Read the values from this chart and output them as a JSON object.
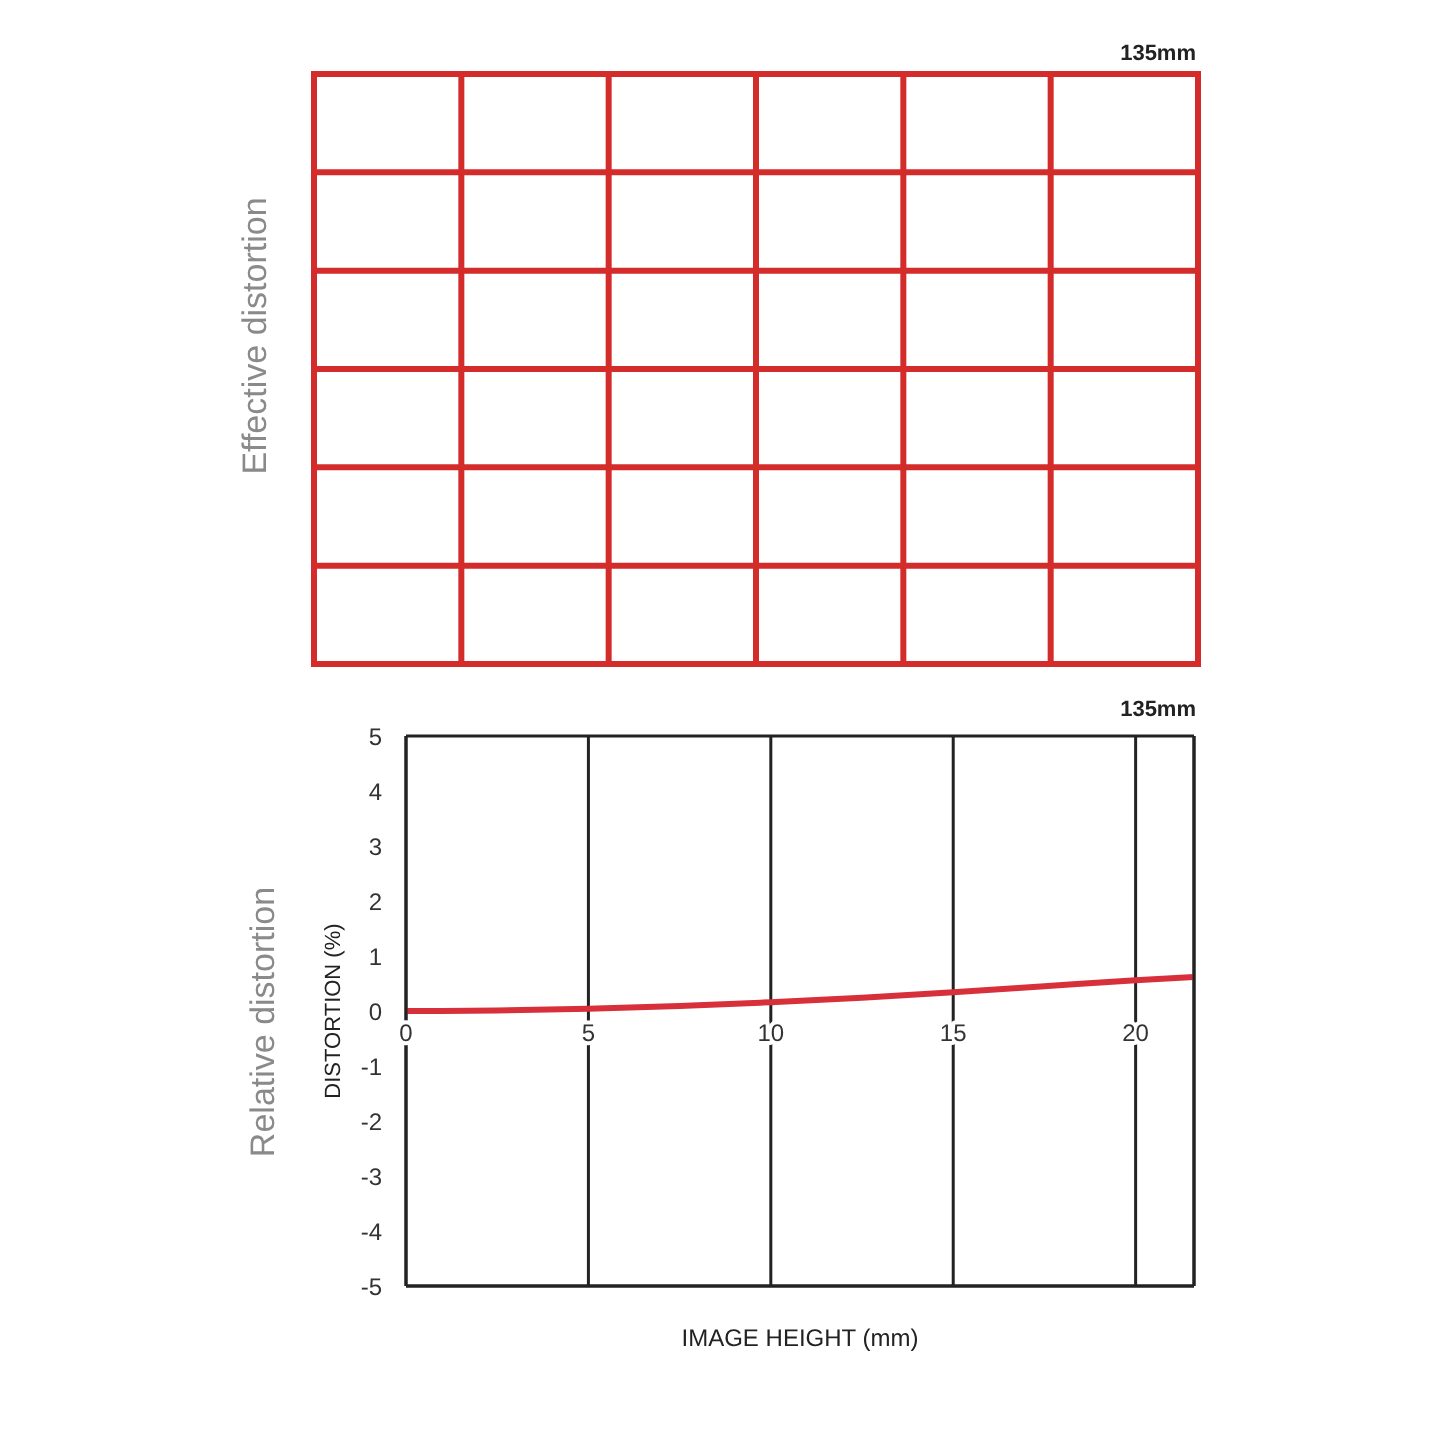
{
  "chart_data": [
    {
      "type": "other",
      "title": "135mm",
      "annotations": [
        "Effective distortion"
      ]
    },
    {
      "type": "line",
      "title": "135mm",
      "xlabel": "IMAGE HEIGHT (mm)",
      "ylabel": "DISTORTION (%)",
      "annotations": [
        "Relative distortion"
      ],
      "x": [
        0,
        2.5,
        5,
        7.5,
        10,
        12.5,
        15,
        17.5,
        20,
        21.6
      ],
      "values": [
        0,
        0.01,
        0.04,
        0.09,
        0.16,
        0.24,
        0.34,
        0.45,
        0.56,
        0.62
      ],
      "color": "#d7303a",
      "xlim": [
        0,
        21.6
      ],
      "xticks": [
        0,
        5,
        10,
        15,
        20
      ],
      "ylim": [
        -5,
        5
      ],
      "yticks": [
        -5,
        -4,
        -3,
        -2,
        -1,
        0,
        1,
        2,
        3,
        4,
        5
      ],
      "grid": true,
      "marker": "none",
      "line_style": "solid"
    }
  ]
}
